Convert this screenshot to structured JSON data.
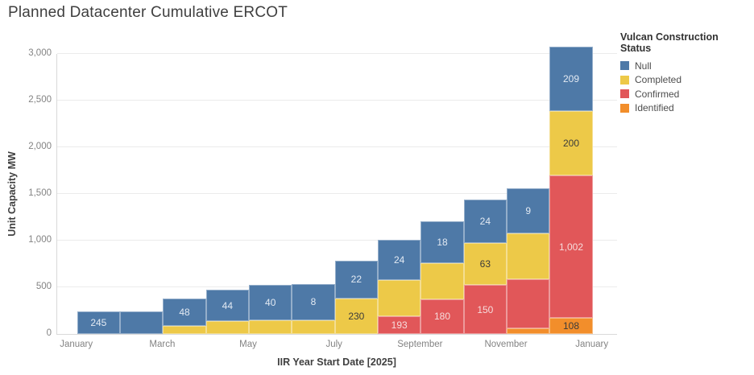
{
  "title": "Planned Datacenter Cumulative ERCOT",
  "legend": {
    "title": "Vulcan Construction Status",
    "entries": [
      {
        "label": "Null",
        "color": "#4E79A7"
      },
      {
        "label": "Completed",
        "color": "#EDC948"
      },
      {
        "label": "Confirmed",
        "color": "#E15759"
      },
      {
        "label": "Identified",
        "color": "#F28E2B"
      }
    ]
  },
  "chart_data": {
    "type": "bar",
    "variant": "stacked-cumulative",
    "title": "Planned Datacenter Cumulative ERCOT",
    "xlabel": "IIR Year Start Date [2025]",
    "ylabel": "Unit Capacity MW",
    "ylim": [
      0,
      3000
    ],
    "yticks": [
      0,
      500,
      1000,
      1500,
      2000,
      2500,
      3000
    ],
    "grid": "horizontal",
    "legend_position": "top-right",
    "x_tick_labels": [
      "January",
      "March",
      "May",
      "July",
      "September",
      "November",
      "January"
    ],
    "months": [
      "January",
      "February",
      "March",
      "April",
      "May",
      "June",
      "July",
      "August",
      "September",
      "October",
      "November",
      "December"
    ],
    "stack_order_bottom_to_top": [
      "Identified",
      "Confirmed",
      "Completed",
      "Null"
    ],
    "series": [
      {
        "name": "Null",
        "color": "#4E79A7",
        "label_color": "#e3eaf3",
        "cumulative_values": [
          245,
          245,
          293,
          337,
          377,
          385,
          407,
          431,
          449,
          473,
          482,
          691
        ],
        "bar_labels": [
          "245",
          "",
          "48",
          "44",
          "40",
          "8",
          "22",
          "24",
          "18",
          "24",
          "9",
          "209"
        ]
      },
      {
        "name": "Completed",
        "color": "#EDC948",
        "label_color": "#3b3b3b",
        "cumulative_values": [
          0,
          0,
          85,
          135,
          145,
          150,
          380,
          385,
          385,
          448,
          490,
          690
        ],
        "bar_labels": [
          "",
          "",
          "",
          "",
          "",
          "",
          "230",
          "",
          "",
          "63",
          "",
          "200"
        ]
      },
      {
        "name": "Confirmed",
        "color": "#E15759",
        "label_color": "#f6dcdc",
        "cumulative_values": [
          0,
          0,
          0,
          0,
          0,
          0,
          0,
          193,
          373,
          523,
          523,
          1525
        ],
        "bar_labels": [
          "",
          "",
          "",
          "",
          "",
          "",
          "",
          "193",
          "180",
          "150",
          "",
          "1,002"
        ]
      },
      {
        "name": "Identified",
        "color": "#F28E2B",
        "label_color": "#3b3b3b",
        "cumulative_values": [
          0,
          0,
          0,
          0,
          0,
          0,
          0,
          0,
          0,
          0,
          62,
          170
        ],
        "bar_labels": [
          "",
          "",
          "",
          "",
          "",
          "",
          "",
          "",
          "",
          "",
          "",
          "108"
        ]
      }
    ]
  }
}
